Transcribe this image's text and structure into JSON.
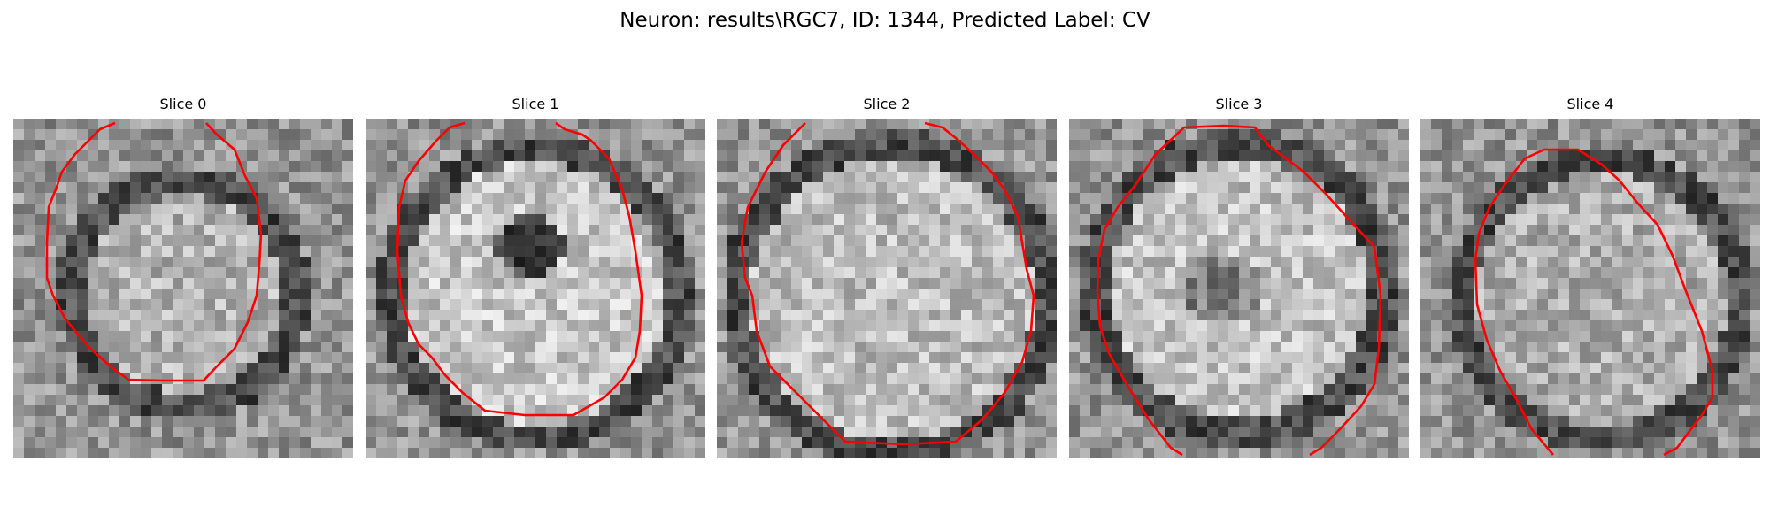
{
  "figure": {
    "title": "Neuron: results\\RGC7, ID: 1344, Predicted Label: CV"
  },
  "panels": [
    {
      "title": "Slice 0"
    },
    {
      "title": "Slice 1"
    },
    {
      "title": "Slice 2"
    },
    {
      "title": "Slice 3"
    },
    {
      "title": "Slice 4"
    }
  ],
  "colors": {
    "contour": "#ff0000",
    "background": "#ffffff"
  }
}
